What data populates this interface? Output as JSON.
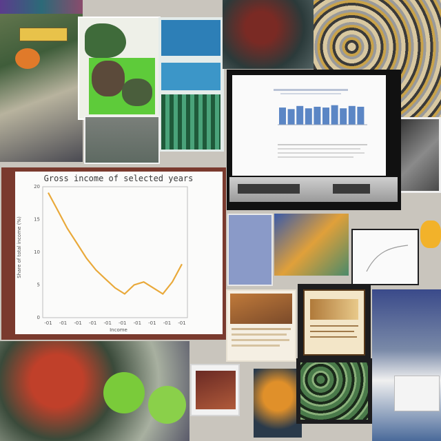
{
  "scene": {
    "colors": {
      "background": "#c9c5bd",
      "line": "#e9a93a",
      "bars": "#5b86c5",
      "frame": "#7a3a2e"
    }
  },
  "hero_chart": {
    "title": "Gross income of selected years",
    "ylabel": "Share of total income (%)",
    "xlabel": "Income",
    "x_ticks": [
      "-01",
      "-01",
      "-01",
      "-01",
      "-01",
      "-01",
      "-01",
      "-01",
      "-01",
      "-01"
    ],
    "y_ticks": [
      "20",
      "15",
      "10",
      "5",
      "0"
    ]
  },
  "chart_data": [
    {
      "type": "line",
      "title": "Gross income of selected years",
      "xlabel": "Income",
      "ylabel": "Share of total income (%)",
      "x": [
        0,
        1,
        2,
        3,
        4,
        5,
        6,
        7,
        8,
        9,
        10,
        11,
        12,
        13,
        14
      ],
      "series": [
        {
          "values": [
            21,
            18,
            15,
            12.5,
            10,
            8,
            6.5,
            5,
            4,
            5.5,
            6,
            5,
            4,
            6,
            9
          ]
        }
      ],
      "ylim": [
        0,
        22
      ],
      "grid": false
    },
    {
      "type": "bar",
      "title": "",
      "categories": [
        "a",
        "b",
        "c",
        "d",
        "e",
        "f",
        "g",
        "h",
        "i",
        "j"
      ],
      "values": [
        22,
        20,
        24,
        21,
        23,
        22,
        25,
        21,
        24,
        23
      ],
      "ylim": [
        0,
        30
      ],
      "grid": false
    }
  ]
}
